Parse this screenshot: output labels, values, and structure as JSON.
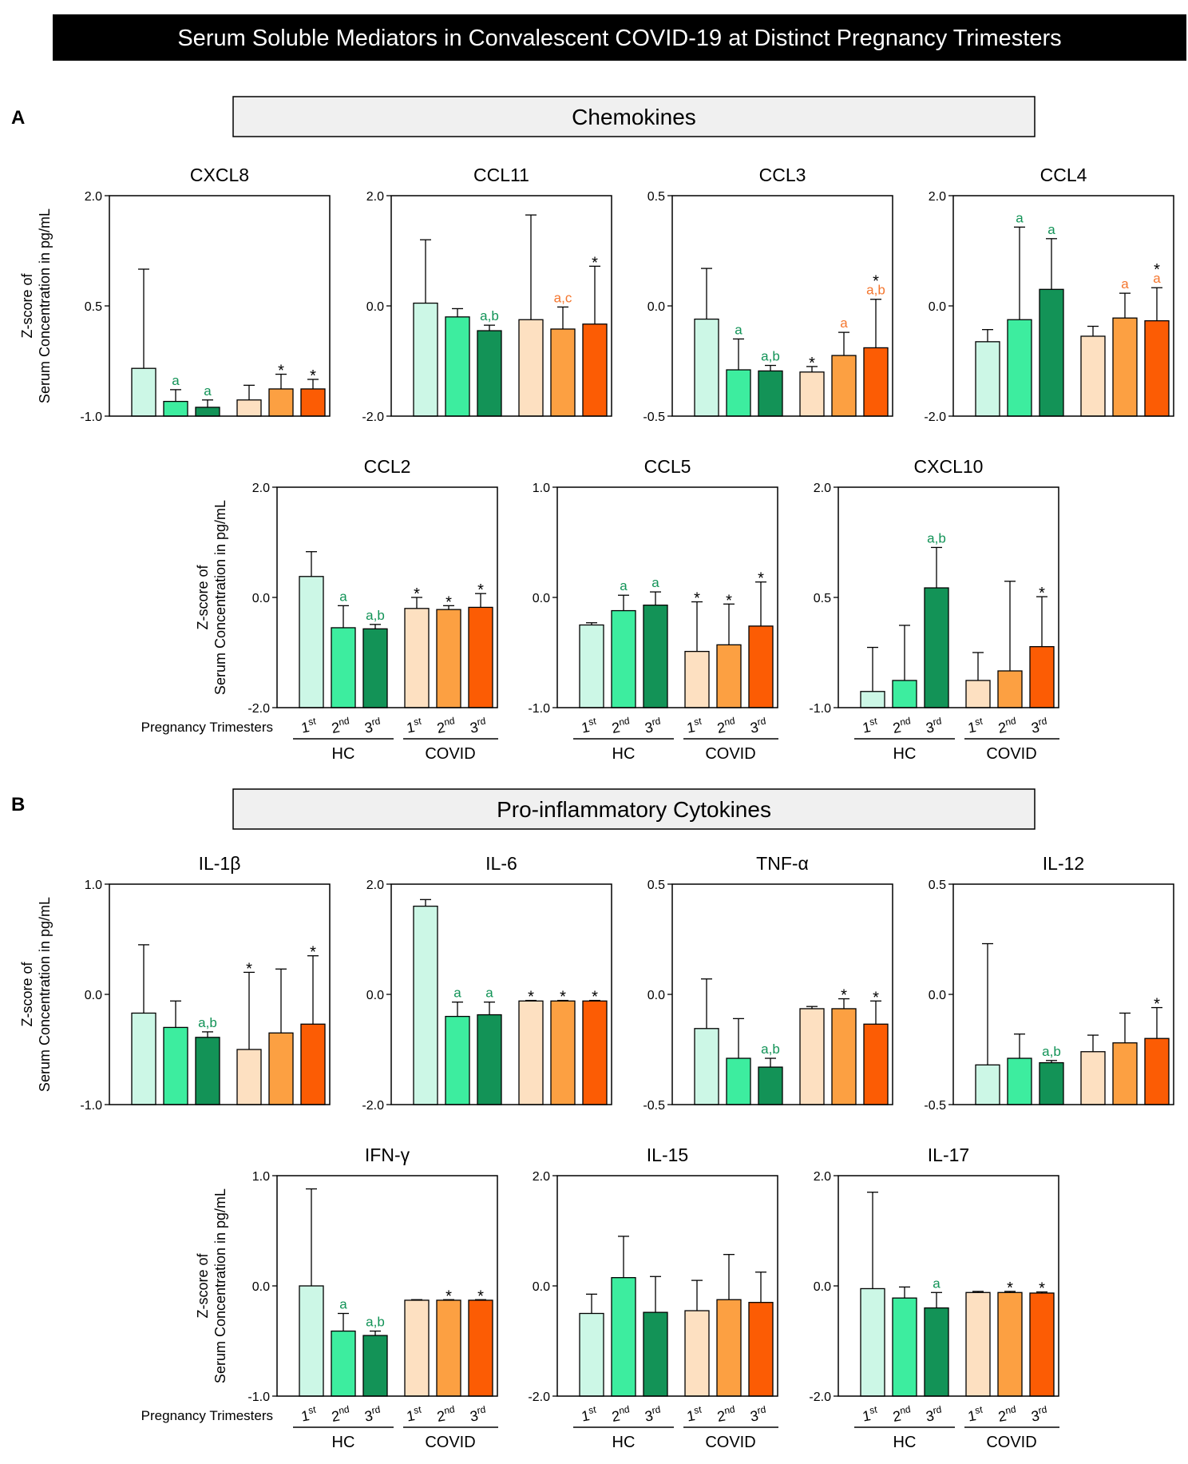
{
  "header": {
    "title": "Serum Soluble Mediators in Convalescent COVID-19 at Distinct Pregnancy Trimesters"
  },
  "colors": {
    "hc": [
      "#ccf7e6",
      "#3ded9f",
      "#139357"
    ],
    "covid": [
      "#fde0c1",
      "#fca042",
      "#fc5c04"
    ],
    "letter_hc": "#129357",
    "letter_covid": "#f4762e",
    "asterisk": "#000000",
    "banner_fill": "#f0f0f0",
    "title_bar": "#000000"
  },
  "axis_label_lines": [
    "Z-score of",
    "Serum Concentration in pg/mL"
  ],
  "x_axis": {
    "row_title": "Pregnancy Trimesters",
    "ordinals": [
      "1",
      "2",
      "3"
    ],
    "superscripts": [
      "st",
      "nd",
      "rd"
    ],
    "groups": [
      "HC",
      "COVID"
    ]
  },
  "panels": [
    {
      "label": "A",
      "banner": "Chemokines"
    },
    {
      "label": "B",
      "banner": "Pro-inflammatory Cytokines"
    }
  ],
  "chart_data": [
    {
      "type": "bar",
      "title": "CXCL8",
      "ylim": [
        -1.0,
        2.0
      ],
      "yticks": [
        "2.0",
        "0.5",
        "-1.0"
      ],
      "categories": [
        "HC 1st",
        "HC 2nd",
        "HC 3rd",
        "COVID 1st",
        "COVID 2nd",
        "COVID 3rd"
      ],
      "values": [
        -0.35,
        -0.8,
        -0.88,
        -0.78,
        -0.63,
        -0.63
      ],
      "errors": [
        1.35,
        0.16,
        0.1,
        0.2,
        0.2,
        0.13
      ],
      "annotations": [
        "",
        "a",
        "a",
        "",
        "*",
        "*"
      ]
    },
    {
      "type": "bar",
      "title": "CCL11",
      "ylim": [
        -2.0,
        2.0
      ],
      "yticks": [
        "2.0",
        "0.0",
        "-2.0"
      ],
      "categories": [
        "HC 1st",
        "HC 2nd",
        "HC 3rd",
        "COVID 1st",
        "COVID 2nd",
        "COVID 3rd"
      ],
      "values": [
        0.05,
        -0.2,
        -0.45,
        -0.25,
        -0.42,
        -0.33
      ],
      "errors": [
        1.15,
        0.15,
        0.1,
        1.9,
        0.4,
        1.05
      ],
      "annotations": [
        "",
        "",
        "a,b",
        "",
        "a,c",
        "*"
      ]
    },
    {
      "type": "bar",
      "title": "CCL3",
      "ylim": [
        -0.5,
        0.5
      ],
      "yticks": [
        "0.5",
        "0.0",
        "-0.5"
      ],
      "categories": [
        "HC 1st",
        "HC 2nd",
        "HC 3rd",
        "COVID 1st",
        "COVID 2nd",
        "COVID 3rd"
      ],
      "values": [
        -0.06,
        -0.29,
        -0.295,
        -0.3,
        -0.225,
        -0.19
      ],
      "errors": [
        0.23,
        0.14,
        0.025,
        0.025,
        0.105,
        0.22
      ],
      "annotations": [
        "",
        "a",
        "a,b",
        "*",
        "a",
        "*|a,b"
      ]
    },
    {
      "type": "bar",
      "title": "CCL4",
      "ylim": [
        -2.0,
        2.0
      ],
      "yticks": [
        "2.0",
        "0.0",
        "-2.0"
      ],
      "categories": [
        "HC 1st",
        "HC 2nd",
        "HC 3rd",
        "COVID 1st",
        "COVID 2nd",
        "COVID 3rd"
      ],
      "values": [
        -0.65,
        -0.25,
        0.3,
        -0.55,
        -0.22,
        -0.27
      ],
      "errors": [
        0.22,
        1.68,
        0.92,
        0.18,
        0.45,
        0.6
      ],
      "annotations": [
        "",
        "a",
        "a",
        "",
        "a",
        "*|a"
      ]
    },
    {
      "type": "bar",
      "title": "CCL2",
      "ylim": [
        -2.0,
        2.0
      ],
      "yticks": [
        "2.0",
        "0.0",
        "-2.0"
      ],
      "categories": [
        "HC 1st",
        "HC 2nd",
        "HC 3rd",
        "COVID 1st",
        "COVID 2nd",
        "COVID 3rd"
      ],
      "values": [
        0.38,
        -0.55,
        -0.57,
        -0.2,
        -0.22,
        -0.18
      ],
      "errors": [
        0.45,
        0.4,
        0.08,
        0.2,
        0.07,
        0.25
      ],
      "annotations": [
        "",
        "a",
        "a,b",
        "*",
        "*",
        "*"
      ]
    },
    {
      "type": "bar",
      "title": "CCL5",
      "ylim": [
        -1.0,
        1.0
      ],
      "yticks": [
        "1.0",
        "0.0",
        "-1.0"
      ],
      "categories": [
        "HC 1st",
        "HC 2nd",
        "HC 3rd",
        "COVID 1st",
        "COVID 2nd",
        "COVID 3rd"
      ],
      "values": [
        -0.25,
        -0.12,
        -0.07,
        -0.49,
        -0.43,
        -0.26
      ],
      "errors": [
        0.02,
        0.14,
        0.12,
        0.45,
        0.37,
        0.4
      ],
      "annotations": [
        "",
        "a",
        "a",
        "*",
        "*",
        "*"
      ]
    },
    {
      "type": "bar",
      "title": "CXCL10",
      "ylim": [
        -1.0,
        2.0
      ],
      "yticks": [
        "2.0",
        "0.5",
        "-1.0"
      ],
      "categories": [
        "HC 1st",
        "HC 2nd",
        "HC 3rd",
        "COVID 1st",
        "COVID 2nd",
        "COVID 3rd"
      ],
      "values": [
        -0.78,
        -0.63,
        0.63,
        -0.63,
        -0.5,
        -0.17
      ],
      "errors": [
        0.6,
        0.75,
        0.55,
        0.38,
        1.22,
        0.68
      ],
      "annotations": [
        "",
        "",
        "a,b",
        "",
        "",
        "*"
      ]
    },
    {
      "type": "bar",
      "title": "IL-1β",
      "ylim": [
        -1.0,
        1.0
      ],
      "yticks": [
        "1.0",
        "0.0",
        "-1.0"
      ],
      "categories": [
        "HC 1st",
        "HC 2nd",
        "HC 3rd",
        "COVID 1st",
        "COVID 2nd",
        "COVID 3rd"
      ],
      "values": [
        -0.17,
        -0.3,
        -0.39,
        -0.5,
        -0.35,
        -0.27
      ],
      "errors": [
        0.62,
        0.24,
        0.05,
        0.7,
        0.58,
        0.62
      ],
      "annotations": [
        "",
        "",
        "a,b",
        "*",
        "",
        "*"
      ]
    },
    {
      "type": "bar",
      "title": "IL-6",
      "ylim": [
        -2.0,
        2.0
      ],
      "yticks": [
        "2.0",
        "0.0",
        "-2.0"
      ],
      "categories": [
        "HC 1st",
        "HC 2nd",
        "HC 3rd",
        "COVID 1st",
        "COVID 2nd",
        "COVID 3rd"
      ],
      "values": [
        1.6,
        -0.4,
        -0.37,
        -0.12,
        -0.12,
        -0.12
      ],
      "errors": [
        0.12,
        0.26,
        0.23,
        0.01,
        0.01,
        0.01
      ],
      "annotations": [
        "",
        "a",
        "a",
        "*",
        "*",
        "*"
      ]
    },
    {
      "type": "bar",
      "title": "TNF-α",
      "ylim": [
        -0.5,
        0.5
      ],
      "yticks": [
        "0.5",
        "0.0",
        "-0.5"
      ],
      "categories": [
        "HC 1st",
        "HC 2nd",
        "HC 3rd",
        "COVID 1st",
        "COVID 2nd",
        "COVID 3rd"
      ],
      "values": [
        -0.155,
        -0.29,
        -0.33,
        -0.065,
        -0.065,
        -0.135
      ],
      "errors": [
        0.225,
        0.18,
        0.04,
        0.01,
        0.045,
        0.105
      ],
      "annotations": [
        "",
        "",
        "a,b",
        "",
        "*",
        "*"
      ]
    },
    {
      "type": "bar",
      "title": "IL-12",
      "ylim": [
        -0.5,
        0.5
      ],
      "yticks": [
        "0.5",
        "0.0",
        "-0.5"
      ],
      "categories": [
        "HC 1st",
        "HC 2nd",
        "HC 3rd",
        "COVID 1st",
        "COVID 2nd",
        "COVID 3rd"
      ],
      "values": [
        -0.32,
        -0.29,
        -0.31,
        -0.26,
        -0.22,
        -0.2
      ],
      "errors": [
        0.55,
        0.11,
        0.01,
        0.075,
        0.135,
        0.14
      ],
      "annotations": [
        "",
        "",
        "a,b",
        "",
        "",
        "*"
      ]
    },
    {
      "type": "bar",
      "title": "IFN-γ",
      "ylim": [
        -1.0,
        1.0
      ],
      "yticks": [
        "1.0",
        "0.0",
        "-1.0"
      ],
      "categories": [
        "HC 1st",
        "HC 2nd",
        "HC 3rd",
        "COVID 1st",
        "COVID 2nd",
        "COVID 3rd"
      ],
      "values": [
        0.0,
        -0.41,
        -0.45,
        -0.13,
        -0.13,
        -0.13
      ],
      "errors": [
        0.88,
        0.16,
        0.04,
        0.005,
        0.005,
        0.005
      ],
      "annotations": [
        "",
        "a",
        "a,b",
        "",
        "*",
        "*"
      ]
    },
    {
      "type": "bar",
      "title": "IL-15",
      "ylim": [
        -2.0,
        2.0
      ],
      "yticks": [
        "2.0",
        "0.0",
        "-2.0"
      ],
      "categories": [
        "HC 1st",
        "HC 2nd",
        "HC 3rd",
        "COVID 1st",
        "COVID 2nd",
        "COVID 3rd"
      ],
      "values": [
        -0.5,
        0.15,
        -0.48,
        -0.45,
        -0.25,
        -0.3
      ],
      "errors": [
        0.35,
        0.75,
        0.65,
        0.55,
        0.82,
        0.55
      ],
      "annotations": [
        "",
        "",
        "",
        "",
        "",
        ""
      ]
    },
    {
      "type": "bar",
      "title": "IL-17",
      "ylim": [
        -2.0,
        2.0
      ],
      "yticks": [
        "2.0",
        "0.0",
        "-2.0"
      ],
      "categories": [
        "HC 1st",
        "HC 2nd",
        "HC 3rd",
        "COVID 1st",
        "COVID 2nd",
        "COVID 3rd"
      ],
      "values": [
        -0.05,
        -0.22,
        -0.4,
        -0.12,
        -0.12,
        -0.13
      ],
      "errors": [
        1.75,
        0.2,
        0.28,
        0.02,
        0.02,
        0.02
      ],
      "annotations": [
        "",
        "",
        "a",
        "",
        "*",
        "*"
      ]
    }
  ]
}
